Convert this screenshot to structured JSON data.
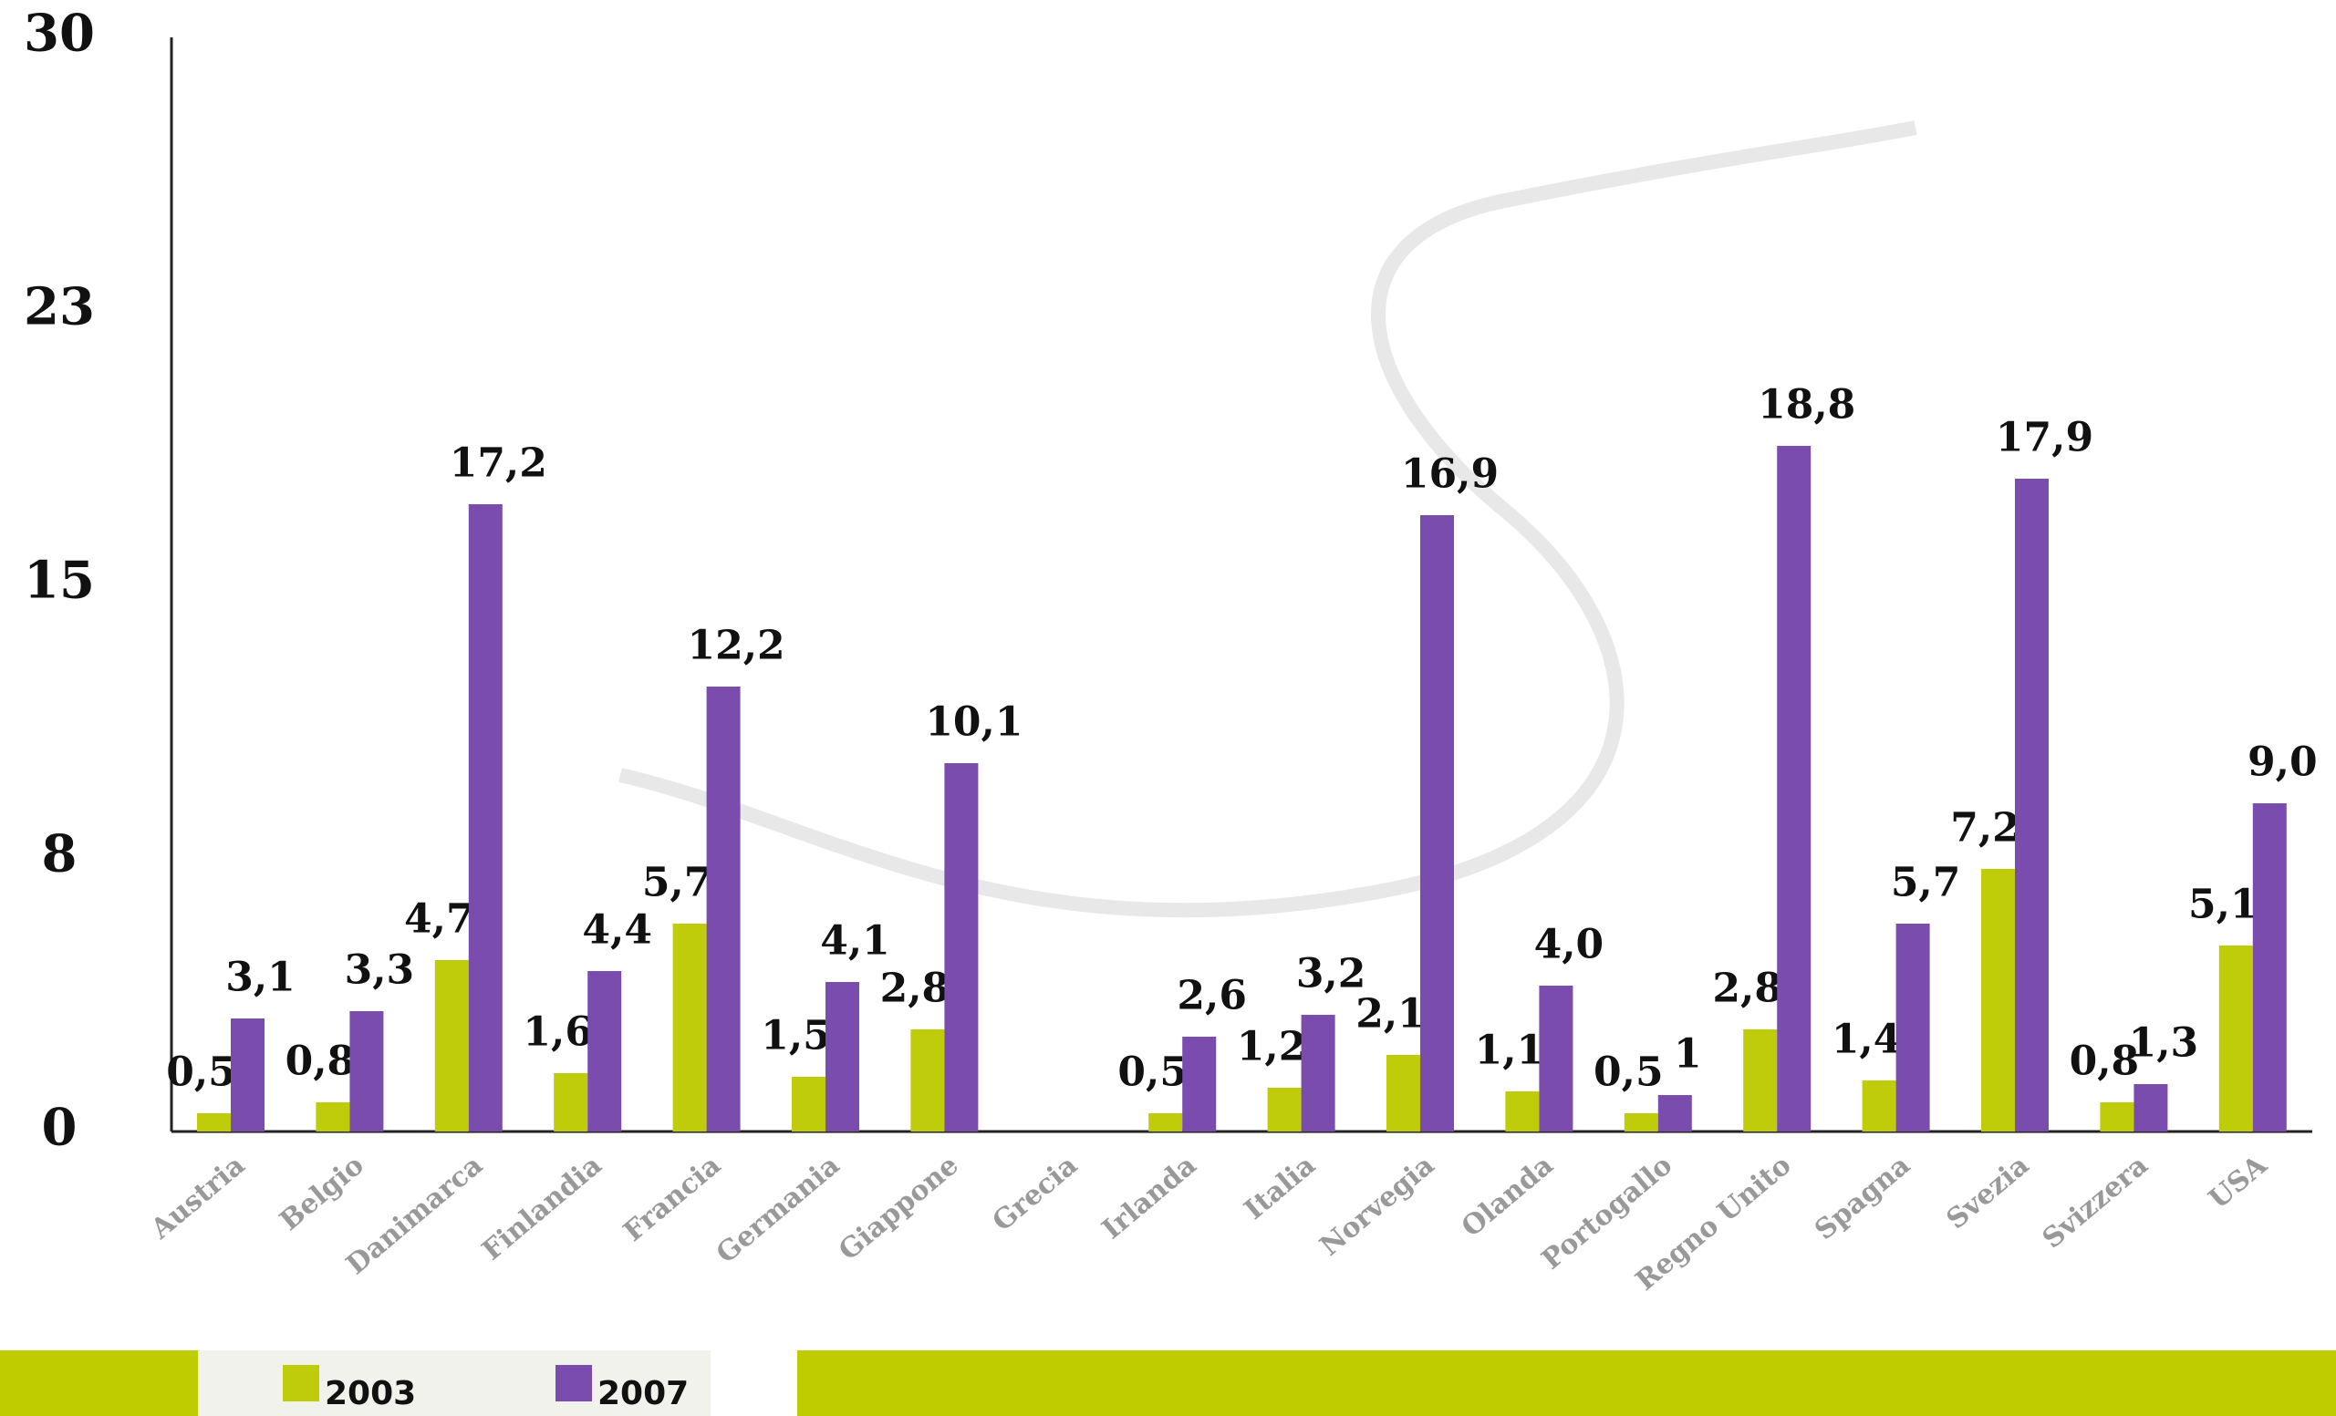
{
  "chart_data": {
    "type": "bar",
    "categories": [
      "Austria",
      "Belgio",
      "Danimarca",
      "Finlandia",
      "Francia",
      "Germania",
      "Giappone",
      "Grecia",
      "Irlanda",
      "Italia",
      "Norvegia",
      "Olanda",
      "Portogallo",
      "Regno Unito",
      "Spagna",
      "Svezia",
      "Svizzera",
      "USA"
    ],
    "series": [
      {
        "name": "2003",
        "color": "#bfcc0a",
        "values": [
          0.5,
          0.8,
          4.7,
          1.6,
          5.7,
          1.5,
          2.8,
          null,
          0.5,
          1.2,
          2.1,
          1.1,
          0.5,
          2.8,
          1.4,
          7.2,
          0.8,
          5.1
        ],
        "value_labels": [
          "0,5",
          "0,8",
          "4,7",
          "1,6",
          "5,7",
          "1,5",
          "2,8",
          null,
          "0,5",
          "1,2",
          "2,1",
          "1,1",
          "0,5",
          "2,8",
          "1,4",
          "7,2",
          "0,8",
          "5,1"
        ]
      },
      {
        "name": "2007",
        "color": "#7a4cae",
        "values": [
          3.1,
          3.3,
          17.2,
          4.4,
          12.2,
          4.1,
          10.1,
          null,
          2.6,
          3.2,
          16.9,
          4.0,
          1,
          18.8,
          5.7,
          17.9,
          1.3,
          9.0
        ],
        "value_labels": [
          "3,1",
          "3,3",
          "17,2",
          "4,4",
          "12,2",
          "4,1",
          "10,1",
          null,
          "2,6",
          "3,2",
          "16,9",
          "4,0",
          "1",
          "18,8",
          "5,7",
          "17,9",
          "1,3",
          "9,0"
        ]
      }
    ],
    "ylim": [
      0,
      30
    ],
    "yticks": [
      0,
      {
        "value": 7.5,
        "label": "8"
      },
      15,
      {
        "value": 22.5,
        "label": "23"
      },
      30
    ],
    "grid": false,
    "legend": "bottom-left"
  }
}
